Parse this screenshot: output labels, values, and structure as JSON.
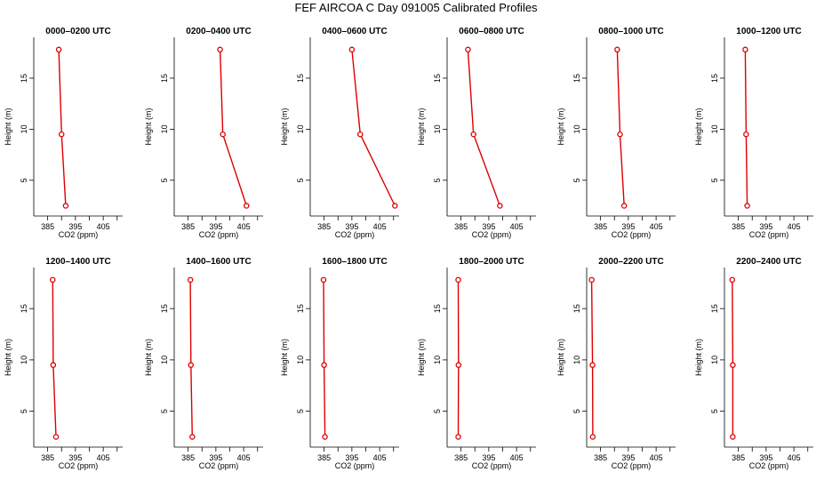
{
  "page": {
    "title": "FEF  AIRCOA C   Day 091005   Calibrated Profiles"
  },
  "colors": {
    "profile": "#dd0000",
    "axis": "#000000",
    "text": "#000000"
  },
  "chart_data": [
    {
      "type": "line",
      "title": "0000–0200 UTC",
      "xlabel": "CO2 (ppm)",
      "ylabel": "Height (m)",
      "xlim": [
        380,
        412
      ],
      "ylim": [
        1.5,
        19
      ],
      "xticks": [
        385,
        390,
        395,
        400,
        405,
        410
      ],
      "xtick_labels": [
        "385",
        "",
        "395",
        "",
        "405",
        ""
      ],
      "yticks": [
        5,
        10,
        15
      ],
      "x": [
        389.0,
        390.0,
        391.5
      ],
      "y": [
        17.8,
        9.5,
        2.5
      ]
    },
    {
      "type": "line",
      "title": "0200–0400 UTC",
      "xlabel": "CO2 (ppm)",
      "ylabel": "Height (m)",
      "xlim": [
        380,
        412
      ],
      "ylim": [
        1.5,
        19
      ],
      "xticks": [
        385,
        390,
        395,
        400,
        405,
        410
      ],
      "xtick_labels": [
        "385",
        "",
        "395",
        "",
        "405",
        ""
      ],
      "yticks": [
        5,
        10,
        15
      ],
      "x": [
        396.5,
        397.5,
        406.0
      ],
      "y": [
        17.8,
        9.5,
        2.5
      ]
    },
    {
      "type": "line",
      "title": "0400–0600 UTC",
      "xlabel": "CO2 (ppm)",
      "ylabel": "Height (m)",
      "xlim": [
        380,
        412
      ],
      "ylim": [
        1.5,
        19
      ],
      "xticks": [
        385,
        390,
        395,
        400,
        405,
        410
      ],
      "xtick_labels": [
        "385",
        "",
        "395",
        "",
        "405",
        ""
      ],
      "yticks": [
        5,
        10,
        15
      ],
      "x": [
        395.0,
        398.0,
        410.5
      ],
      "y": [
        17.8,
        9.5,
        2.5
      ]
    },
    {
      "type": "line",
      "title": "0600–0800 UTC",
      "xlabel": "CO2 (ppm)",
      "ylabel": "Height (m)",
      "xlim": [
        380,
        412
      ],
      "ylim": [
        1.5,
        19
      ],
      "xticks": [
        385,
        390,
        395,
        400,
        405,
        410
      ],
      "xtick_labels": [
        "385",
        "",
        "395",
        "",
        "405",
        ""
      ],
      "yticks": [
        5,
        10,
        15
      ],
      "x": [
        387.5,
        389.5,
        399.0
      ],
      "y": [
        17.8,
        9.5,
        2.5
      ]
    },
    {
      "type": "line",
      "title": "0800–1000 UTC",
      "xlabel": "CO2 (ppm)",
      "ylabel": "Height (m)",
      "xlim": [
        380,
        412
      ],
      "ylim": [
        1.5,
        19
      ],
      "xticks": [
        385,
        390,
        395,
        400,
        405,
        410
      ],
      "xtick_labels": [
        "385",
        "",
        "395",
        "",
        "405",
        ""
      ],
      "yticks": [
        5,
        10,
        15
      ],
      "x": [
        391.0,
        392.0,
        393.5
      ],
      "y": [
        17.8,
        9.5,
        2.5
      ]
    },
    {
      "type": "line",
      "title": "1000–1200 UTC",
      "xlabel": "CO2 (ppm)",
      "ylabel": "Height (m)",
      "xlim": [
        380,
        412
      ],
      "ylim": [
        1.5,
        19
      ],
      "xticks": [
        385,
        390,
        395,
        400,
        405,
        410
      ],
      "xtick_labels": [
        "385",
        "",
        "395",
        "",
        "405",
        ""
      ],
      "yticks": [
        5,
        10,
        15
      ],
      "x": [
        387.5,
        387.8,
        388.2
      ],
      "y": [
        17.8,
        9.5,
        2.5
      ]
    },
    {
      "type": "line",
      "title": "1200–1400 UTC",
      "xlabel": "CO2 (ppm)",
      "ylabel": "Height (m)",
      "xlim": [
        380,
        412
      ],
      "ylim": [
        1.5,
        19
      ],
      "xticks": [
        385,
        390,
        395,
        400,
        405,
        410
      ],
      "xtick_labels": [
        "385",
        "",
        "395",
        "",
        "405",
        ""
      ],
      "yticks": [
        5,
        10,
        15
      ],
      "x": [
        386.8,
        387.0,
        388.0
      ],
      "y": [
        17.8,
        9.5,
        2.5
      ]
    },
    {
      "type": "line",
      "title": "1400–1600 UTC",
      "xlabel": "CO2 (ppm)",
      "ylabel": "Height (m)",
      "xlim": [
        380,
        412
      ],
      "ylim": [
        1.5,
        19
      ],
      "xticks": [
        385,
        390,
        395,
        400,
        405,
        410
      ],
      "xtick_labels": [
        "385",
        "",
        "395",
        "",
        "405",
        ""
      ],
      "yticks": [
        5,
        10,
        15
      ],
      "x": [
        385.8,
        386.0,
        386.5
      ],
      "y": [
        17.8,
        9.5,
        2.5
      ]
    },
    {
      "type": "line",
      "title": "1600–1800 UTC",
      "xlabel": "CO2 (ppm)",
      "ylabel": "Height (m)",
      "xlim": [
        380,
        412
      ],
      "ylim": [
        1.5,
        19
      ],
      "xticks": [
        385,
        390,
        395,
        400,
        405,
        410
      ],
      "xtick_labels": [
        "385",
        "",
        "395",
        "",
        "405",
        ""
      ],
      "yticks": [
        5,
        10,
        15
      ],
      "x": [
        384.8,
        385.0,
        385.3
      ],
      "y": [
        17.8,
        9.5,
        2.5
      ]
    },
    {
      "type": "line",
      "title": "1800–2000 UTC",
      "xlabel": "CO2 (ppm)",
      "ylabel": "Height (m)",
      "xlim": [
        380,
        412
      ],
      "ylim": [
        1.5,
        19
      ],
      "xticks": [
        385,
        390,
        395,
        400,
        405,
        410
      ],
      "xtick_labels": [
        "385",
        "",
        "395",
        "",
        "405",
        ""
      ],
      "yticks": [
        5,
        10,
        15
      ],
      "x": [
        384.0,
        384.1,
        384.0
      ],
      "y": [
        17.8,
        9.5,
        2.5
      ]
    },
    {
      "type": "line",
      "title": "2000–2200 UTC",
      "xlabel": "CO2 (ppm)",
      "ylabel": "Height (m)",
      "xlim": [
        380,
        412
      ],
      "ylim": [
        1.5,
        19
      ],
      "xticks": [
        385,
        390,
        395,
        400,
        405,
        410
      ],
      "xtick_labels": [
        "385",
        "",
        "395",
        "",
        "405",
        ""
      ],
      "yticks": [
        5,
        10,
        15
      ],
      "x": [
        381.8,
        382.1,
        382.2
      ],
      "y": [
        17.8,
        9.5,
        2.5
      ]
    },
    {
      "type": "line",
      "title": "2200–2400 UTC",
      "xlabel": "CO2 (ppm)",
      "ylabel": "Height (m)",
      "xlim": [
        380,
        412
      ],
      "ylim": [
        1.5,
        19
      ],
      "xticks": [
        385,
        390,
        395,
        400,
        405,
        410
      ],
      "xtick_labels": [
        "385",
        "",
        "395",
        "",
        "405",
        ""
      ],
      "yticks": [
        5,
        10,
        15
      ],
      "x": [
        382.8,
        383.0,
        383.0
      ],
      "y": [
        17.8,
        9.5,
        2.5
      ]
    }
  ]
}
